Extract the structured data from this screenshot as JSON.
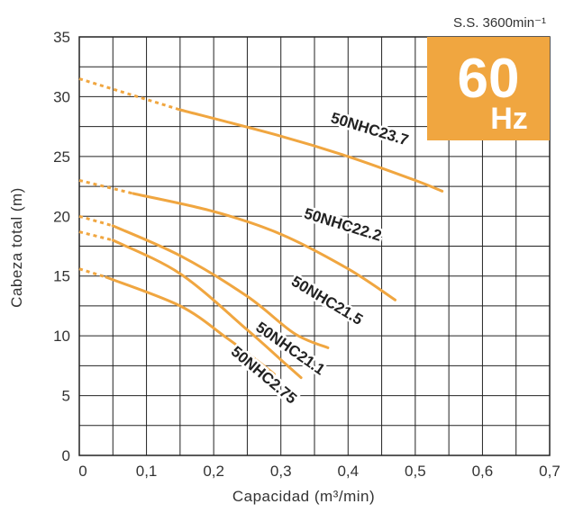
{
  "chart_data": {
    "type": "line",
    "xlabel": "Capacidad (m³/min)",
    "ylabel": "Cabeza total (m)",
    "xlim": [
      0,
      0.7
    ],
    "ylim": [
      0,
      35
    ],
    "x_ticks": [
      "0",
      "0,1",
      "0,2",
      "0,3",
      "0,4",
      "0,5",
      "0,6",
      "0,7"
    ],
    "y_ticks": [
      "0",
      "5",
      "10",
      "15",
      "20",
      "25",
      "30",
      "35"
    ],
    "grid": true,
    "speed_label": "S.S. 3600min⁻¹",
    "frequency_value": "60",
    "frequency_unit": "Hz",
    "colors": {
      "curve": "#F0A640",
      "grid": "#222222",
      "badge": "#F0A640"
    },
    "series": [
      {
        "name": "50NHC23.7",
        "dashed": {
          "x": [
            0,
            0.15
          ],
          "y": [
            31.5,
            28.9
          ]
        },
        "values": {
          "x": [
            0.15,
            0.3,
            0.4,
            0.5,
            0.54
          ],
          "y": [
            28.9,
            26.7,
            25.0,
            23.0,
            22.1
          ]
        }
      },
      {
        "name": "50NHC22.2",
        "dashed": {
          "x": [
            0,
            0.08
          ],
          "y": [
            23.0,
            21.9
          ]
        },
        "values": {
          "x": [
            0.08,
            0.2,
            0.3,
            0.4,
            0.47
          ],
          "y": [
            21.9,
            20.4,
            18.5,
            15.6,
            13.0
          ]
        }
      },
      {
        "name": "50NHC21.5",
        "dashed": {
          "x": [
            0,
            0.05
          ],
          "y": [
            20.0,
            19.2
          ]
        },
        "values": {
          "x": [
            0.05,
            0.15,
            0.25,
            0.32,
            0.37
          ],
          "y": [
            19.2,
            16.7,
            13.3,
            10.2,
            9.0
          ]
        }
      },
      {
        "name": "50NHC21.1",
        "dashed": {
          "x": [
            0,
            0.05
          ],
          "y": [
            18.7,
            18.0
          ]
        },
        "values": {
          "x": [
            0.05,
            0.15,
            0.25,
            0.3,
            0.33
          ],
          "y": [
            18.0,
            15.2,
            10.5,
            8.0,
            6.5
          ]
        }
      },
      {
        "name": "50NHC2.75",
        "dashed": {
          "x": [
            0,
            0.04
          ],
          "y": [
            15.6,
            14.9
          ]
        },
        "values": {
          "x": [
            0.04,
            0.15,
            0.22,
            0.27,
            0.29
          ],
          "y": [
            14.9,
            12.5,
            9.8,
            7.7,
            6.8
          ]
        }
      }
    ]
  }
}
